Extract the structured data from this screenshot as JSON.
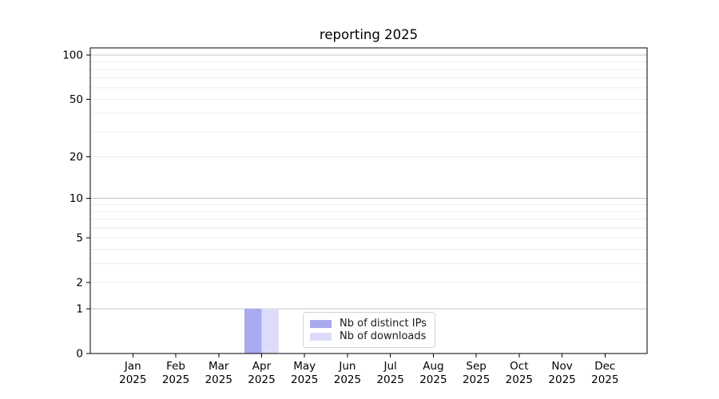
{
  "chart_data": {
    "type": "bar",
    "title": "reporting 2025",
    "year": "2025",
    "categories": [
      "Jan",
      "Feb",
      "Mar",
      "Apr",
      "May",
      "Jun",
      "Jul",
      "Aug",
      "Sep",
      "Oct",
      "Nov",
      "Dec"
    ],
    "series": [
      {
        "name": "Nb of distinct IPs",
        "color": "#aaaaf0",
        "values": [
          0,
          0,
          0,
          1,
          0,
          0,
          0,
          0,
          0,
          0,
          0,
          0
        ]
      },
      {
        "name": "Nb of downloads",
        "color": "#dcdcfa",
        "values": [
          0,
          0,
          0,
          1,
          0,
          0,
          0,
          0,
          0,
          0,
          0,
          0
        ]
      }
    ],
    "xlabel": "",
    "ylabel": "",
    "yscale": "log1p",
    "ylim": [
      0,
      112
    ],
    "y_ticks": [
      0,
      1,
      2,
      5,
      10,
      20,
      50,
      100
    ],
    "grid": {
      "on": true,
      "major": [
        1,
        10,
        100
      ],
      "minor": [
        2,
        3,
        4,
        5,
        6,
        7,
        8,
        9,
        20,
        30,
        40,
        50,
        60,
        70,
        80,
        90
      ]
    },
    "legend": {
      "position": "lower center",
      "entries": [
        "Nb of distinct IPs",
        "Nb of downloads"
      ]
    },
    "bar_width_fraction": 0.4,
    "colors": {
      "axis": "#000000",
      "text": "#000000",
      "grid_major": "#c6c6c6",
      "grid_minor": "#ececec",
      "background": "#ffffff"
    }
  }
}
